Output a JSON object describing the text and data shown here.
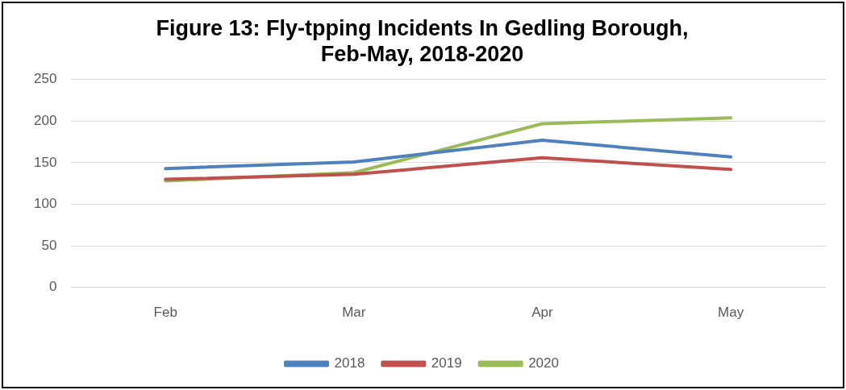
{
  "chart_data": {
    "type": "line",
    "title": "Figure 13: Fly-tpping Incidents In Gedling Borough, Feb-May, 2018-2020",
    "categories": [
      "Feb",
      "Mar",
      "Apr",
      "May"
    ],
    "series": [
      {
        "name": "2018",
        "color": "#4f81bd",
        "values": [
          143,
          151,
          177,
          157
        ]
      },
      {
        "name": "2019",
        "color": "#c0504d",
        "values": [
          130,
          136,
          156,
          142
        ]
      },
      {
        "name": "2020",
        "color": "#9bbb59",
        "values": [
          128,
          138,
          197,
          204
        ]
      }
    ],
    "ylim": [
      0,
      250
    ],
    "yticks": [
      0,
      50,
      100,
      150,
      200,
      250
    ],
    "grid": "y",
    "legend": "bottom",
    "marker": "none",
    "line_style": "solid"
  }
}
